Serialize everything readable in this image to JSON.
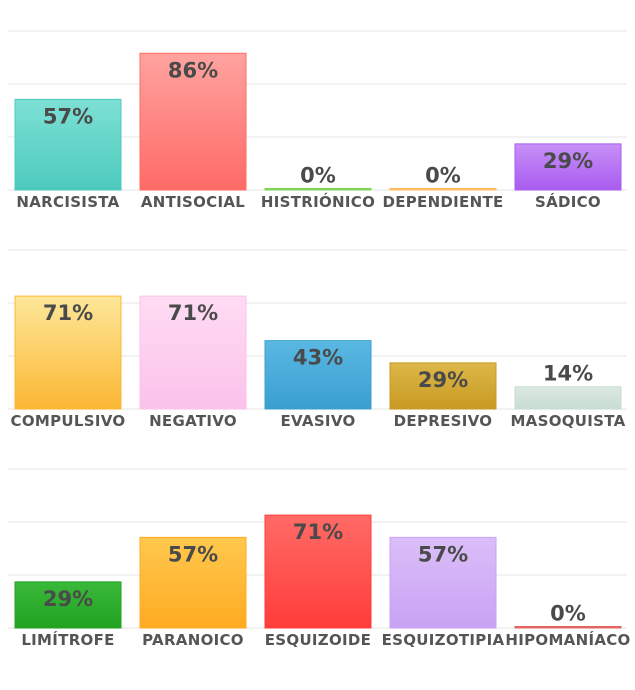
{
  "chart_data": [
    {
      "type": "bar",
      "ylim": [
        0,
        100
      ],
      "grid": true,
      "categories": [
        "NARCISISTA",
        "ANTISOCIAL",
        "HISTRIÓNICO",
        "DEPENDIENTE",
        "SÁDICO"
      ],
      "values": [
        57,
        86,
        0,
        0,
        29
      ],
      "value_labels": [
        "57%",
        "86%",
        "0%",
        "0%",
        "29%"
      ],
      "colors": [
        [
          "#7ee0d5",
          "#4ccabd"
        ],
        [
          "#ffa3a0",
          "#ff6a66"
        ],
        [
          "#9be079",
          "#79d350"
        ],
        [
          "#ffd49a",
          "#ffb75c"
        ],
        [
          "#c790f7",
          "#a95cf0"
        ]
      ]
    },
    {
      "type": "bar",
      "ylim": [
        0,
        100
      ],
      "grid": true,
      "categories": [
        "COMPULSIVO",
        "NEGATIVO",
        "EVASIVO",
        "DEPRESIVO",
        "MASOQUISTA"
      ],
      "values": [
        71,
        71,
        43,
        29,
        14
      ],
      "value_labels": [
        "71%",
        "71%",
        "43%",
        "29%",
        "14%"
      ],
      "colors": [
        [
          "#fde79a",
          "#fbb733"
        ],
        [
          "#ffdcf3",
          "#fbc2ea"
        ],
        [
          "#5ab8e3",
          "#3a9fd0"
        ],
        [
          "#dcb748",
          "#c99a23"
        ],
        [
          "#dce9e2",
          "#c8ddd2"
        ]
      ]
    },
    {
      "type": "bar",
      "ylim": [
        0,
        100
      ],
      "grid": true,
      "categories": [
        "LIMÍTROFE",
        "PARANOICO",
        "ESQUIZOIDE",
        "ESQUIZOTIPIA",
        "HIPOMANÍACO"
      ],
      "values": [
        29,
        57,
        71,
        57,
        0
      ],
      "value_labels": [
        "29%",
        "57%",
        "71%",
        "57%",
        "0%"
      ],
      "colors": [
        [
          "#3ab83a",
          "#21a321"
        ],
        [
          "#ffc84e",
          "#ffab22"
        ],
        [
          "#ff6a66",
          "#ff3d3a"
        ],
        [
          "#dbbef8",
          "#c9a2f4"
        ],
        [
          "#f08a8a",
          "#e06060"
        ]
      ]
    }
  ]
}
